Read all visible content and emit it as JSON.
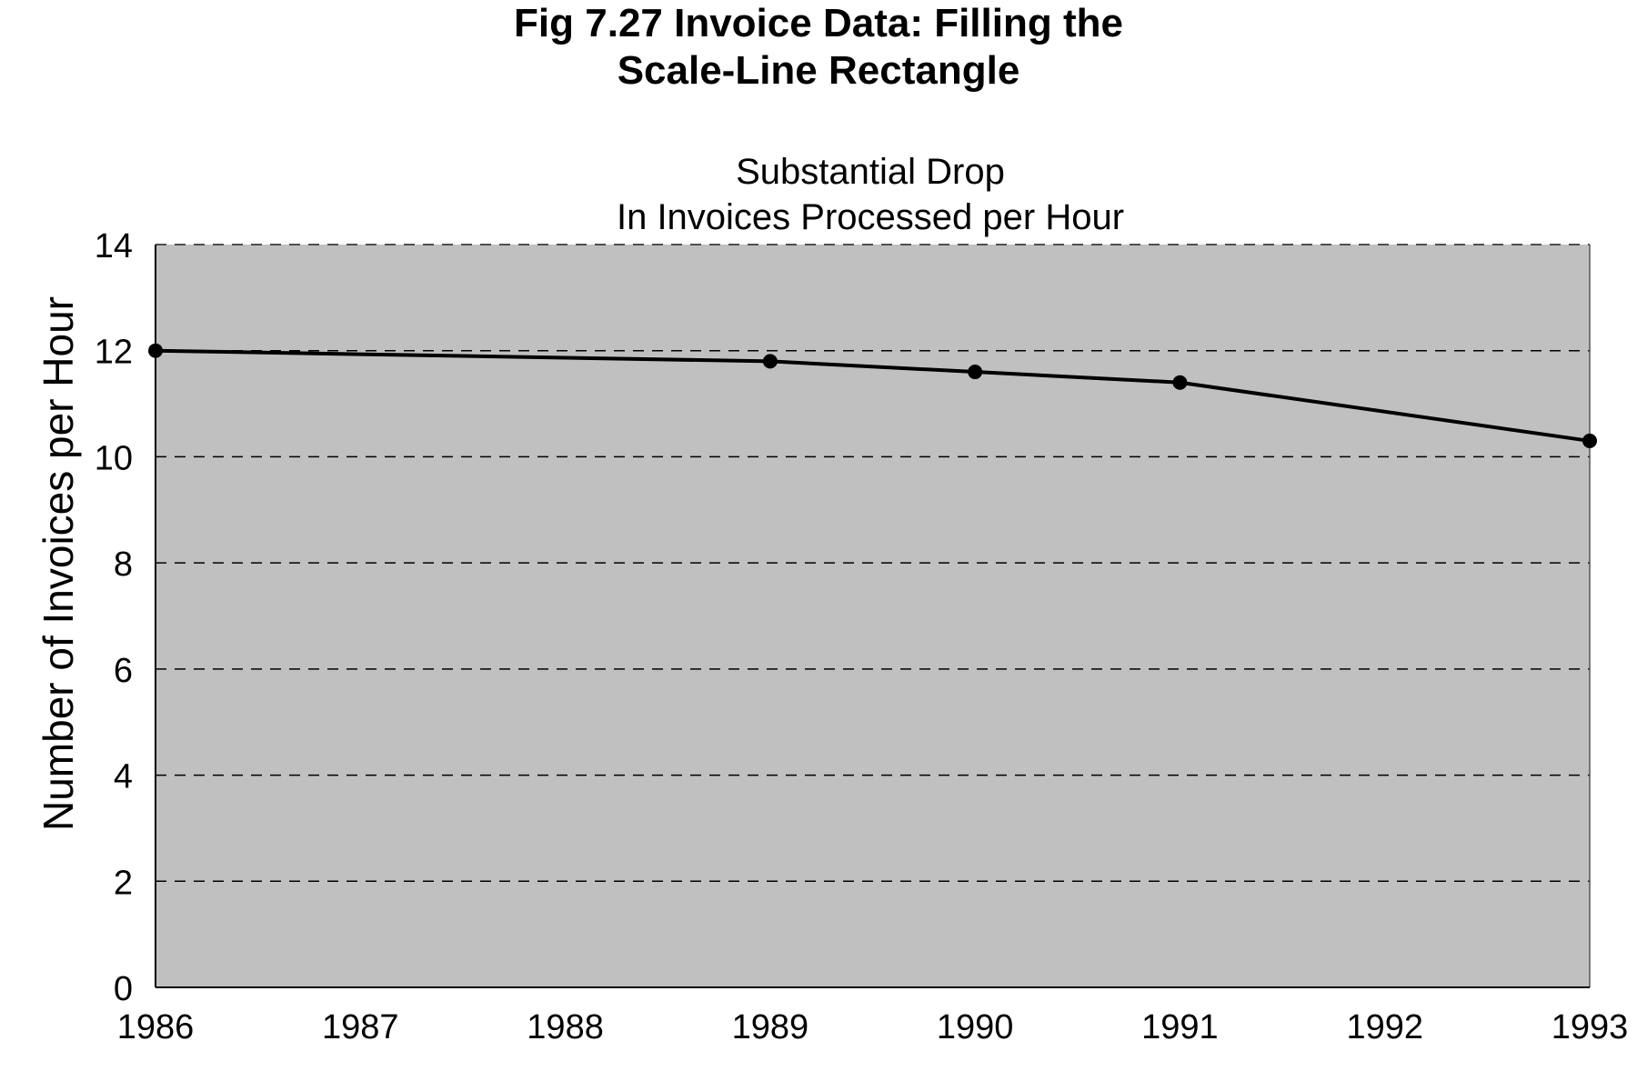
{
  "figure": {
    "title_line1": "Fig 7.27 Invoice Data: Filling the",
    "title_line2": "Scale-Line Rectangle"
  },
  "chart_data": {
    "type": "line",
    "title_line1": "Substantial Drop",
    "title_line2": "In Invoices Processed per Hour",
    "xlabel": "",
    "ylabel": "Number of Invoices per Hour",
    "xlim": [
      1986,
      1993
    ],
    "ylim": [
      0,
      14
    ],
    "x_ticks": [
      "1986",
      "1987",
      "1988",
      "1989",
      "1990",
      "1991",
      "1992",
      "1993"
    ],
    "y_ticks": [
      "0",
      "2",
      "4",
      "6",
      "8",
      "10",
      "12",
      "14"
    ],
    "grid": "horizontal dashed",
    "legend": "none",
    "plot_background": "#c0c0c0",
    "line_color": "#000000",
    "series": [
      {
        "x": [
          1986,
          1989,
          1990,
          1991,
          1993
        ],
        "y": [
          12.0,
          11.8,
          11.6,
          11.4,
          10.3
        ]
      }
    ]
  }
}
